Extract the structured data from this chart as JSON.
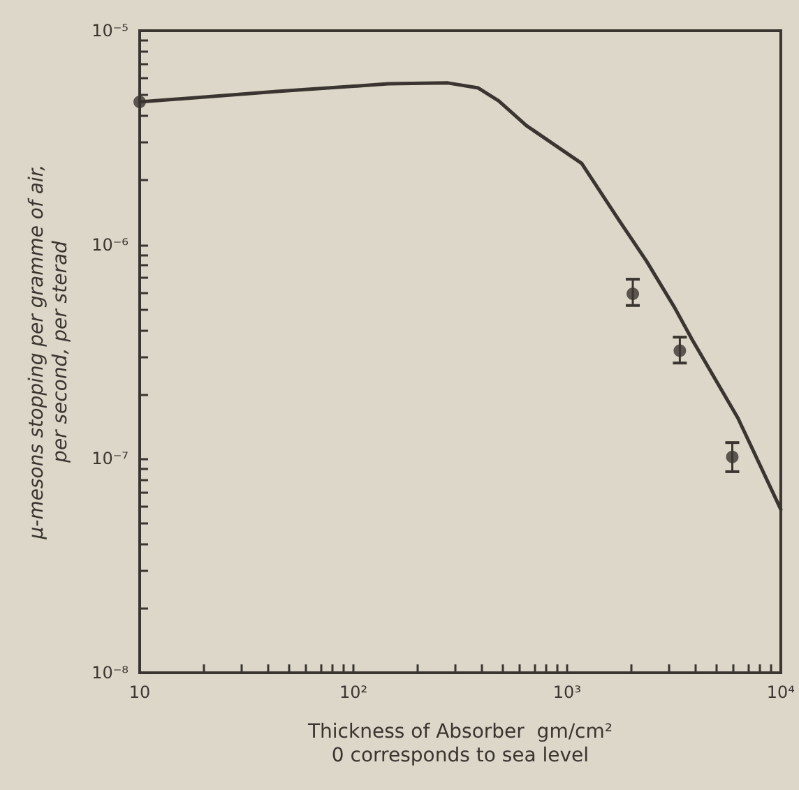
{
  "chart_data": {
    "type": "line",
    "xlabel": "Thickness of Absorber  gm/cm²\n0 corresponds to sea level",
    "ylabel": "μ-mesons stopping per gramme of air,\nper second, per sterad",
    "log": "xy",
    "grid": false,
    "xlim": [
      10,
      10000
    ],
    "ylim": [
      1e-08,
      1e-05
    ],
    "xticks": [
      {
        "value": 10,
        "label": "10"
      },
      {
        "value": 20,
        "label": null
      },
      {
        "value": 30,
        "label": null
      },
      {
        "value": 40,
        "label": null
      },
      {
        "value": 50,
        "label": null
      },
      {
        "value": 60,
        "label": null
      },
      {
        "value": 70,
        "label": null
      },
      {
        "value": 80,
        "label": null
      },
      {
        "value": 90,
        "label": null
      },
      {
        "value": 100,
        "label": "10²"
      },
      {
        "value": 200,
        "label": null
      },
      {
        "value": 300,
        "label": null
      },
      {
        "value": 400,
        "label": null
      },
      {
        "value": 500,
        "label": null
      },
      {
        "value": 600,
        "label": null
      },
      {
        "value": 700,
        "label": null
      },
      {
        "value": 800,
        "label": null
      },
      {
        "value": 900,
        "label": null
      },
      {
        "value": 1000,
        "label": "10³"
      },
      {
        "value": 2000,
        "label": null
      },
      {
        "value": 3000,
        "label": null
      },
      {
        "value": 4000,
        "label": null
      },
      {
        "value": 5000,
        "label": null
      },
      {
        "value": 6000,
        "label": null
      },
      {
        "value": 7000,
        "label": null
      },
      {
        "value": 8000,
        "label": null
      },
      {
        "value": 9000,
        "label": null
      },
      {
        "value": 10000,
        "label": "10⁴"
      }
    ],
    "yticks": [
      {
        "value": 1e-08,
        "label": "10⁻⁸"
      },
      {
        "value": 2e-08,
        "label": null
      },
      {
        "value": 3e-08,
        "label": null
      },
      {
        "value": 4e-08,
        "label": null
      },
      {
        "value": 5e-08,
        "label": null
      },
      {
        "value": 6e-08,
        "label": null
      },
      {
        "value": 7e-08,
        "label": null
      },
      {
        "value": 8e-08,
        "label": null
      },
      {
        "value": 9e-08,
        "label": null
      },
      {
        "value": 1e-07,
        "label": "10⁻⁷"
      },
      {
        "value": 2e-07,
        "label": null
      },
      {
        "value": 3e-07,
        "label": null
      },
      {
        "value": 4e-07,
        "label": null
      },
      {
        "value": 5e-07,
        "label": null
      },
      {
        "value": 6e-07,
        "label": null
      },
      {
        "value": 7e-07,
        "label": null
      },
      {
        "value": 8e-07,
        "label": null
      },
      {
        "value": 9e-07,
        "label": null
      },
      {
        "value": 1e-06,
        "label": "10⁻⁶"
      },
      {
        "value": 2e-06,
        "label": null
      },
      {
        "value": 3e-06,
        "label": null
      },
      {
        "value": 4e-06,
        "label": null
      },
      {
        "value": 5e-06,
        "label": null
      },
      {
        "value": 6e-06,
        "label": null
      },
      {
        "value": 7e-06,
        "label": null
      },
      {
        "value": 8e-06,
        "label": null
      },
      {
        "value": 9e-06,
        "label": null
      },
      {
        "value": 1e-05,
        "label": "10⁻⁵"
      }
    ],
    "series": [
      {
        "color": "#3a3530",
        "marker": "none",
        "line_style": "solid",
        "x": [
          10,
          44,
          146,
          277,
          384,
          479,
          646,
          1170,
          1750,
          2350,
          3180,
          3850,
          6300,
          10000
        ],
        "values": [
          4.65e-06,
          5.2e-06,
          5.65e-06,
          5.7e-06,
          5.4e-06,
          4.7e-06,
          3.6e-06,
          2.4e-06,
          1.3e-06,
          8.4e-07,
          5.1e-07,
          3.6e-07,
          1.55e-07,
          5.8e-08
        ]
      },
      {
        "type": "scatter",
        "color": "#3a3530",
        "marker": "circle",
        "x": [
          10,
          2030,
          3370,
          5930
        ],
        "values": [
          4.65e-06,
          5.9e-07,
          3.2e-07,
          1.02e-07
        ],
        "errors": [
          null,
          [
            5.2e-07,
            6.9e-07
          ],
          [
            2.8e-07,
            3.7e-07
          ],
          [
            8.7e-08,
            1.19e-07
          ]
        ]
      }
    ]
  }
}
